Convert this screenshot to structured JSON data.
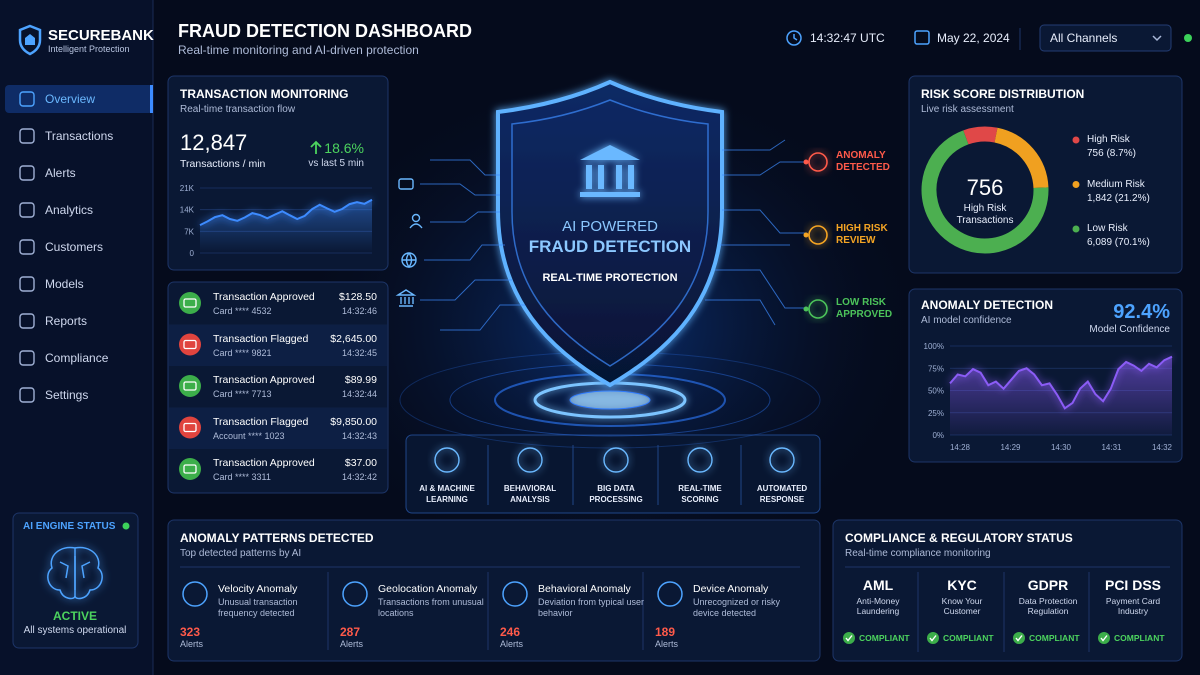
{
  "brand": {
    "name": "SECUREBANK",
    "tagline": "Intelligent Protection"
  },
  "nav": {
    "items": [
      "Overview",
      "Transactions",
      "Alerts",
      "Analytics",
      "Customers",
      "Models",
      "Reports",
      "Compliance",
      "Settings"
    ],
    "active_index": 0
  },
  "engine_status": {
    "title": "AI ENGINE STATUS",
    "state": "ACTIVE",
    "detail": "All systems operational"
  },
  "header": {
    "title": "FRAUD DETECTION DASHBOARD",
    "subtitle": "Real-time monitoring and AI-driven protection",
    "time": "14:32:47 UTC",
    "date": "May 22, 2024",
    "channel": "All Channels"
  },
  "transaction_monitoring": {
    "title": "TRANSACTION MONITORING",
    "subtitle": "Real-time transaction flow",
    "rate": "12,847",
    "rate_label": "Transactions / min",
    "change": "18.6%",
    "change_label": "vs last 5 min",
    "chart": {
      "type": "area",
      "color": "#3d8bff",
      "ylim": [
        0,
        21000
      ],
      "yticks": [
        0,
        {
          "value": 7000,
          "label": "7K"
        },
        {
          "value": 14000,
          "label": "14K"
        },
        {
          "value": 21000,
          "label": "21K"
        }
      ],
      "values": [
        9000,
        10200,
        11600,
        12200,
        11000,
        10400,
        11500,
        12900,
        12300,
        11200,
        12400,
        13500,
        12200,
        11000,
        12000,
        14200,
        15600,
        14400,
        13300,
        14200,
        15800,
        16400,
        15900,
        17200
      ]
    }
  },
  "transactions": [
    {
      "title": "Transaction Approved",
      "account": "Card **** 4532",
      "amount": "$128.50",
      "time": "14:32:46",
      "color": "#3cae4a"
    },
    {
      "title": "Transaction Flagged",
      "account": "Card **** 9821",
      "amount": "$2,645.00",
      "time": "14:32:45",
      "color": "#e0443e"
    },
    {
      "title": "Transaction Approved",
      "account": "Card **** 7713",
      "amount": "$89.99",
      "time": "14:32:44",
      "color": "#3cae4a"
    },
    {
      "title": "Transaction Flagged",
      "account": "Account **** 1023",
      "amount": "$9,850.00",
      "time": "14:32:43",
      "color": "#e0443e"
    },
    {
      "title": "Transaction Approved",
      "account": "Card **** 3311",
      "amount": "$37.00",
      "time": "14:32:42",
      "color": "#3cae4a"
    }
  ],
  "shield": {
    "line1": "AI POWERED",
    "line2": "FRAUD DETECTION",
    "line3": "REAL-TIME PROTECTION"
  },
  "outcomes": [
    {
      "label": "ANOMALY DETECTED",
      "color": "#ff5a4a"
    },
    {
      "label": "HIGH RISK REVIEW",
      "color": "#f5a524"
    },
    {
      "label": "LOW RISK APPROVED",
      "color": "#4cc35a"
    }
  ],
  "capabilities": [
    "AI & MACHINE LEARNING",
    "BEHAVIORAL ANALYSIS",
    "BIG DATA PROCESSING",
    "REAL-TIME SCORING",
    "AUTOMATED RESPONSE"
  ],
  "risk_distribution": {
    "title": "RISK SCORE DISTRIBUTION",
    "subtitle": "Live risk assessment",
    "center_value": "756",
    "center_label": "High Risk Transactions",
    "series": [
      {
        "name": "High Risk",
        "value": 756,
        "label": "756 (8.7%)",
        "color": "#e04848"
      },
      {
        "name": "Medium Risk",
        "value": 1842,
        "label": "1,842 (21.2%)",
        "color": "#f0a020"
      },
      {
        "name": "Low Risk",
        "value": 6089,
        "label": "6,089 (70.1%)",
        "color": "#4caf50"
      }
    ]
  },
  "anomaly_detection": {
    "title": "ANOMALY DETECTION",
    "subtitle": "AI model confidence",
    "confidence": "92.4%",
    "confidence_label": "Model Confidence",
    "chart": {
      "type": "area",
      "color": "#8b5cf6",
      "ylim": [
        0,
        100
      ],
      "yticks": [
        {
          "value": 0,
          "label": "0%"
        },
        {
          "value": 25,
          "label": "25%"
        },
        {
          "value": 50,
          "label": "50%"
        },
        {
          "value": 75,
          "label": "75%"
        },
        {
          "value": 100,
          "label": "100%"
        }
      ],
      "xticks": [
        "14:28",
        "14:29",
        "14:30",
        "14:31",
        "14:32"
      ],
      "values": [
        58,
        68,
        66,
        74,
        70,
        56,
        60,
        52,
        62,
        72,
        75,
        68,
        56,
        58,
        45,
        30,
        36,
        52,
        60,
        46,
        38,
        52,
        74,
        82,
        78,
        72,
        80,
        76,
        84,
        88
      ]
    }
  },
  "anomaly_patterns": {
    "title": "ANOMALY PATTERNS DETECTED",
    "subtitle": "Top detected patterns by AI",
    "items": [
      {
        "name": "Velocity Anomaly",
        "description": "Unusual transaction frequency detected",
        "count": "323",
        "unit": "Alerts"
      },
      {
        "name": "Geolocation Anomaly",
        "description": "Transactions from unusual locations",
        "count": "287",
        "unit": "Alerts"
      },
      {
        "name": "Behavioral Anomaly",
        "description": "Deviation from typical user behavior",
        "count": "246",
        "unit": "Alerts"
      },
      {
        "name": "Device Anomaly",
        "description": "Unrecognized or risky device detected",
        "count": "189",
        "unit": "Alerts"
      }
    ]
  },
  "compliance": {
    "title": "COMPLIANCE & REGULATORY STATUS",
    "subtitle": "Real-time compliance monitoring",
    "items": [
      {
        "name": "AML",
        "description": "Anti-Money Laundering",
        "status": "COMPLIANT"
      },
      {
        "name": "KYC",
        "description": "Know Your Customer",
        "status": "COMPLIANT"
      },
      {
        "name": "GDPR",
        "description": "Data Protection Regulation",
        "status": "COMPLIANT"
      },
      {
        "name": "PCI DSS",
        "description": "Payment Card Industry",
        "status": "COMPLIANT"
      }
    ]
  }
}
